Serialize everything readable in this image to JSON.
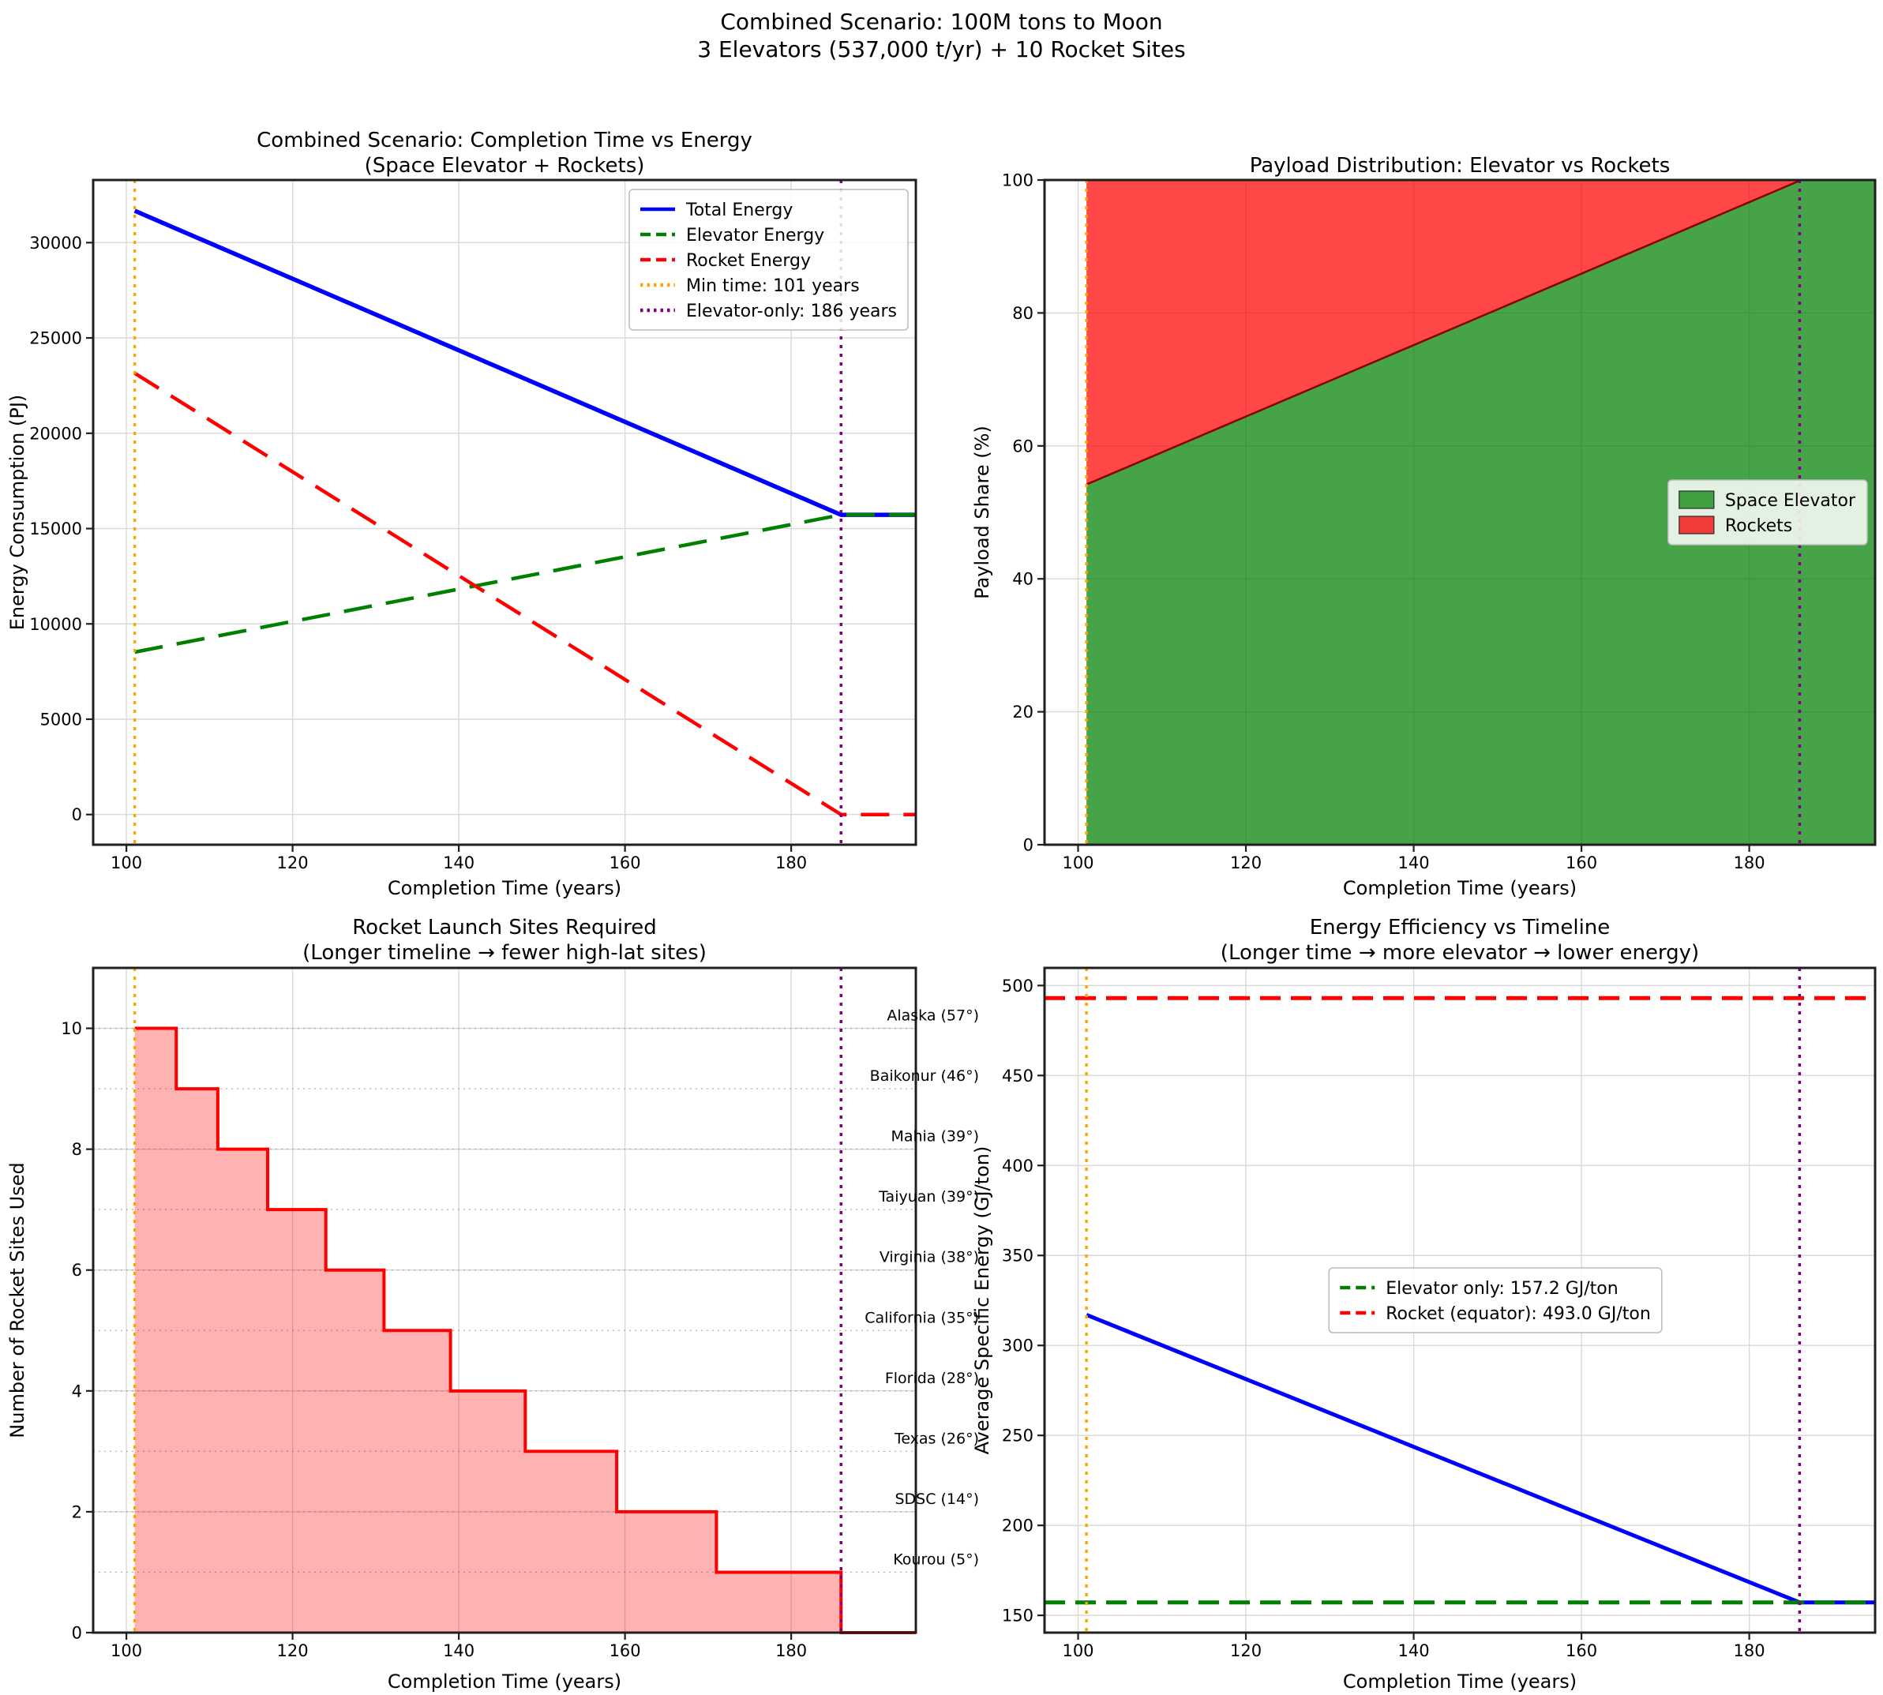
{
  "suptitle": {
    "line1": "Combined Scenario: 100M tons to Moon",
    "line2": "3 Elevators (537,000 t/yr) + 10 Rocket Sites"
  },
  "chart_data": [
    {
      "id": "completion-time-vs-energy",
      "type": "line",
      "title": "Combined Scenario: Completion Time vs Energy",
      "subtitle": "(Space Elevator + Rockets)",
      "xlabel": "Completion Time (years)",
      "ylabel": "Energy Consumption (PJ)",
      "xlim": [
        96,
        195
      ],
      "ylim": [
        -1585,
        33285
      ],
      "xticks": [
        100,
        120,
        140,
        160,
        180
      ],
      "yticks": [
        0,
        5000,
        10000,
        15000,
        20000,
        25000,
        30000
      ],
      "grid": true,
      "series": [
        {
          "name": "Total Energy",
          "color": "#0000ff",
          "style": "solid",
          "width": 5.5,
          "points": [
            [
              101,
              31670
            ],
            [
              186,
              15720
            ],
            [
              195,
              15720
            ]
          ]
        },
        {
          "name": "Elevator Energy",
          "color": "#008000",
          "style": "dashed",
          "width": 4.5,
          "points": [
            [
              101,
              8520
            ],
            [
              186,
              15720
            ],
            [
              195,
              15720
            ]
          ]
        },
        {
          "name": "Rocket Energy",
          "color": "#ff0000",
          "style": "dashed",
          "width": 4.5,
          "points": [
            [
              101,
              23150
            ],
            [
              186,
              0
            ],
            [
              195,
              0
            ]
          ]
        }
      ],
      "vlines": [
        {
          "x": 101,
          "color": "#ffa500",
          "style": "dotted",
          "label": "Min time: 101 years"
        },
        {
          "x": 186,
          "color": "#800080",
          "style": "dotted",
          "label": "Elevator-only: 186 years"
        }
      ],
      "legend": {
        "position": "upper-right",
        "entries": [
          {
            "label": "Total Energy",
            "kind": "line",
            "color": "#0000ff",
            "style": "solid"
          },
          {
            "label": "Elevator Energy",
            "kind": "line",
            "color": "#008000",
            "style": "dashed"
          },
          {
            "label": "Rocket Energy",
            "kind": "line",
            "color": "#ff0000",
            "style": "dashed"
          },
          {
            "label": "Min time: 101 years",
            "kind": "line",
            "color": "#ffa500",
            "style": "dotted"
          },
          {
            "label": "Elevator-only: 186 years",
            "kind": "line",
            "color": "#800080",
            "style": "dotted"
          }
        ]
      }
    },
    {
      "id": "payload-distribution",
      "type": "stacked-area",
      "title": "Payload Distribution: Elevator vs Rockets",
      "xlabel": "Completion Time (years)",
      "ylabel": "Payload Share (%)",
      "xlim": [
        96,
        195
      ],
      "ylim": [
        0,
        100
      ],
      "xticks": [
        100,
        120,
        140,
        160,
        180
      ],
      "yticks": [
        0,
        20,
        40,
        60,
        80,
        100
      ],
      "grid": true,
      "boundary": {
        "x": [
          101,
          186.2,
          195
        ],
        "elevator_share": [
          54.2,
          100,
          100
        ]
      },
      "area_colors": {
        "elevator": "#008000",
        "rockets": "#ff0000",
        "fill_opacity": 0.72,
        "edge": "#8b0000"
      },
      "vlines": [
        {
          "x": 101,
          "color": "#ffa500",
          "style": "dotted"
        },
        {
          "x": 186,
          "color": "#800080",
          "style": "dotted"
        }
      ],
      "legend": {
        "position": "center-right",
        "entries": [
          {
            "label": "Space Elevator",
            "kind": "patch",
            "color": "#40a040"
          },
          {
            "label": "Rockets",
            "kind": "patch",
            "color": "#f23c3c"
          }
        ]
      }
    },
    {
      "id": "rocket-sites-required",
      "type": "step-area",
      "title": "Rocket Launch Sites Required",
      "subtitle": "(Longer timeline → fewer high-lat sites)",
      "xlabel": "Completion Time (years)",
      "ylabel": "Number of Rocket Sites Used",
      "xlim": [
        96,
        195
      ],
      "ylim": [
        0,
        11
      ],
      "xticks": [
        100,
        120,
        140,
        160,
        180
      ],
      "yticks": [
        0,
        2,
        4,
        6,
        8,
        10
      ],
      "grid": true,
      "step": {
        "x": [
          101,
          106,
          111,
          117,
          124,
          131,
          139,
          148,
          159,
          171,
          186
        ],
        "sites": [
          10,
          9,
          8,
          7,
          6,
          5,
          4,
          3,
          2,
          1,
          0
        ],
        "x_end": 195
      },
      "step_style": {
        "color": "#ff0000",
        "width": 4,
        "fill": "#ff0000",
        "fill_opacity": 0.3
      },
      "site_labels": [
        {
          "label": "Alaska (57°)",
          "level": 10
        },
        {
          "label": "Baikonur (46°)",
          "level": 9
        },
        {
          "label": "Mahia (39°)",
          "level": 8
        },
        {
          "label": "Taiyuan (39°)",
          "level": 7
        },
        {
          "label": "Virginia (38°)",
          "level": 6
        },
        {
          "label": "California (35°)",
          "level": 5
        },
        {
          "label": "Florida (28°)",
          "level": 4
        },
        {
          "label": "Texas (26°)",
          "level": 3
        },
        {
          "label": "SDSC (14°)",
          "level": 2
        },
        {
          "label": "Kourou (5°)",
          "level": 1
        }
      ],
      "vlines": [
        {
          "x": 101,
          "color": "#ffa500",
          "style": "dotted"
        },
        {
          "x": 186,
          "color": "#800080",
          "style": "dotted"
        }
      ]
    },
    {
      "id": "energy-efficiency",
      "type": "line",
      "title": "Energy Efficiency vs Timeline",
      "subtitle": "(Longer time → more elevator → lower energy)",
      "xlabel": "Completion Time (years)",
      "ylabel": "Average Specific Energy (GJ/ton)",
      "xlim": [
        96,
        195
      ],
      "ylim": [
        140.4,
        509.8
      ],
      "xticks": [
        100,
        120,
        140,
        160,
        180
      ],
      "yticks": [
        150,
        200,
        250,
        300,
        350,
        400,
        450,
        500
      ],
      "grid": true,
      "series": [
        {
          "name": "Average specific energy",
          "color": "#0000ff",
          "style": "solid",
          "width": 5,
          "points": [
            [
              101,
              317
            ],
            [
              186,
              157.2
            ],
            [
              195,
              157.2
            ]
          ]
        }
      ],
      "hlines": [
        {
          "y": 157.2,
          "color": "#008000",
          "style": "dashed",
          "label": "Elevator only: 157.2 GJ/ton"
        },
        {
          "y": 493,
          "color": "#ff0000",
          "style": "dashed",
          "label": "Rocket (equator): 493.0 GJ/ton"
        }
      ],
      "vlines": [
        {
          "x": 101,
          "color": "#ffa500",
          "style": "dotted"
        },
        {
          "x": 186,
          "color": "#800080",
          "style": "dotted"
        }
      ],
      "legend": {
        "position": "center",
        "entries": [
          {
            "label": "Elevator only: 157.2 GJ/ton",
            "kind": "line",
            "color": "#008000",
            "style": "dashed"
          },
          {
            "label": "Rocket (equator): 493.0 GJ/ton",
            "kind": "line",
            "color": "#ff0000",
            "style": "dashed"
          }
        ]
      }
    }
  ]
}
